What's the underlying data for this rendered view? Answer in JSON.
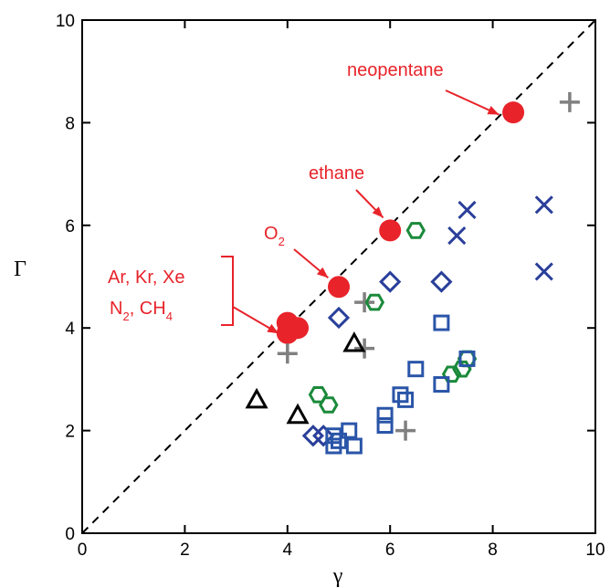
{
  "chart_data": {
    "type": "scatter",
    "xlabel": "γ",
    "ylabel": "Γ",
    "xlim": [
      0,
      10
    ],
    "ylim": [
      0,
      10
    ],
    "xticks": [
      0,
      2,
      4,
      6,
      8,
      10
    ],
    "yticks": [
      0,
      2,
      4,
      6,
      8,
      10
    ],
    "grid": false,
    "reference_line": {
      "style": "dashed",
      "color": "#000000",
      "points": [
        [
          0,
          0
        ],
        [
          10,
          10
        ]
      ]
    },
    "series": [
      {
        "marker": "filled-circle",
        "color": "#e8232a",
        "points": [
          [
            4.0,
            3.9
          ],
          [
            4.0,
            4.1
          ],
          [
            4.2,
            4.0
          ],
          [
            5.0,
            4.8
          ],
          [
            6.0,
            5.9
          ],
          [
            8.4,
            8.2
          ]
        ]
      },
      {
        "marker": "plus",
        "color": "#808080",
        "points": [
          [
            4.0,
            3.5
          ],
          [
            5.5,
            3.6
          ],
          [
            5.5,
            4.5
          ],
          [
            6.3,
            2.0
          ],
          [
            9.5,
            8.4
          ]
        ]
      },
      {
        "marker": "open-triangle",
        "color": "#000000",
        "points": [
          [
            3.4,
            2.6
          ],
          [
            4.2,
            2.3
          ],
          [
            5.3,
            3.7
          ]
        ]
      },
      {
        "marker": "open-hexagon",
        "color": "#1a8a3a",
        "points": [
          [
            4.6,
            2.7
          ],
          [
            4.8,
            2.5
          ],
          [
            5.7,
            4.5
          ],
          [
            6.5,
            5.9
          ],
          [
            7.2,
            3.1
          ],
          [
            7.4,
            3.2
          ],
          [
            7.5,
            3.4
          ]
        ]
      },
      {
        "marker": "open-diamond",
        "color": "#2a3f9a",
        "points": [
          [
            4.5,
            1.9
          ],
          [
            4.7,
            1.9
          ],
          [
            5.0,
            4.2
          ],
          [
            6.0,
            4.9
          ],
          [
            7.0,
            4.9
          ]
        ]
      },
      {
        "marker": "open-square",
        "color": "#2a55a8",
        "points": [
          [
            4.9,
            1.9
          ],
          [
            4.9,
            1.7
          ],
          [
            5.0,
            1.8
          ],
          [
            5.2,
            2.0
          ],
          [
            5.3,
            1.7
          ],
          [
            5.9,
            2.1
          ],
          [
            5.9,
            2.3
          ],
          [
            6.2,
            2.7
          ],
          [
            6.3,
            2.6
          ],
          [
            6.5,
            3.2
          ],
          [
            7.0,
            4.1
          ],
          [
            7.0,
            2.9
          ],
          [
            7.5,
            3.4
          ]
        ]
      },
      {
        "marker": "x-cross",
        "color": "#2a3f9a",
        "points": [
          [
            7.3,
            5.8
          ],
          [
            7.5,
            6.3
          ],
          [
            9.0,
            6.4
          ],
          [
            9.0,
            5.1
          ]
        ]
      }
    ],
    "annotations": [
      {
        "id": "neopentane",
        "lines": [
          "neopentane"
        ],
        "color": "#e8232a",
        "arrow_to": [
          8.3,
          8.3
        ]
      },
      {
        "id": "ethane",
        "lines": [
          "ethane"
        ],
        "color": "#e8232a",
        "arrow_to": [
          5.9,
          5.9
        ]
      },
      {
        "id": "o2",
        "lines": [
          "O",
          "2"
        ],
        "color": "#e8232a",
        "arrow_to": [
          4.9,
          4.8
        ]
      },
      {
        "id": "group",
        "lines": [
          "Ar, Kr, Xe",
          "N",
          "2",
          ", CH",
          "4"
        ],
        "color": "#e8232a",
        "arrow_to": [
          3.9,
          4.0
        ]
      }
    ]
  }
}
